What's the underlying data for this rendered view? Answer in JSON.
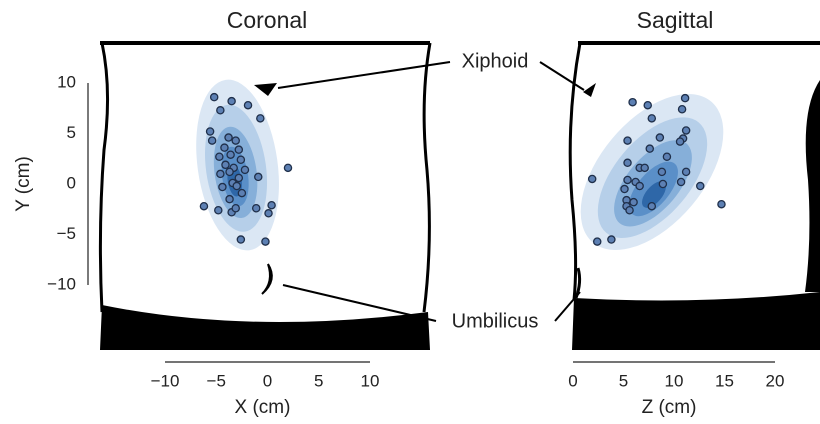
{
  "chart_data": [
    {
      "type": "scatter",
      "title": "Coronal",
      "x_label": "X (cm)",
      "y_label": "Y (cm)",
      "color": "#5d80b3",
      "xlim": [
        -10,
        10
      ],
      "xticks": [
        {
          "value": -10,
          "label": "−10"
        },
        {
          "value": -5,
          "label": "−5"
        },
        0,
        5,
        10
      ],
      "ylim": [
        -10,
        10
      ],
      "yticks": [
        {
          "value": -10,
          "label": "−10"
        },
        {
          "value": -5,
          "label": "−5"
        },
        0,
        5,
        10
      ],
      "x": [
        -5.2,
        -3.5,
        -1.9,
        -4.6,
        -0.7,
        -5.6,
        -5.4,
        -3.8,
        -3.1,
        -4.2,
        -2.8,
        -4.7,
        -3.6,
        -2.6,
        -4.1,
        -3.3,
        -2.2,
        -4.6,
        -3.7,
        -2.8,
        -3.4,
        -3.0,
        -4.4,
        -0.9,
        2.0,
        -2.5,
        -3.7,
        -6.2,
        -4.8,
        -3.5,
        -3.1,
        -1.1,
        0.4,
        0.1,
        -2.6,
        -0.2
      ],
      "y": [
        8.6,
        8.2,
        7.8,
        7.3,
        6.5,
        5.2,
        4.3,
        4.6,
        4.3,
        3.6,
        3.4,
        2.7,
        2.9,
        2.4,
        1.9,
        1.6,
        1.4,
        1.0,
        1.2,
        0.6,
        0.1,
        -0.2,
        -0.3,
        0.7,
        1.6,
        -0.9,
        -1.5,
        -2.2,
        -2.6,
        -2.8,
        -2.4,
        -2.4,
        -2.1,
        -2.9,
        -5.5,
        -5.7
      ]
    },
    {
      "type": "scatter",
      "title": "Sagittal",
      "x_label": "Z  (cm)",
      "color": "#5d80b3",
      "xlim": [
        0,
        20
      ],
      "xticks": [
        0,
        5,
        10,
        15,
        20
      ],
      "ylim": [
        -10,
        10
      ],
      "x": [
        5.9,
        7.4,
        11.1,
        10.8,
        7.8,
        5.4,
        11.2,
        10.9,
        8.6,
        7.6,
        10.6,
        9.3,
        5.4,
        6.6,
        5.4,
        7.1,
        8.8,
        1.9,
        6.2,
        5.1,
        8.9,
        11.2,
        12.6,
        10.7,
        5.3,
        5.3,
        5.6,
        6.0,
        7.8,
        14.7,
        3.8,
        2.4,
        6.6
      ],
      "y": [
        8.1,
        7.8,
        8.5,
        7.4,
        6.5,
        4.3,
        5.3,
        4.5,
        4.6,
        3.5,
        4.2,
        2.7,
        2.1,
        1.6,
        0.4,
        1.6,
        1.2,
        0.5,
        0.2,
        -0.5,
        0.0,
        1.2,
        -0.2,
        0.2,
        -1.6,
        -2.2,
        -2.6,
        -1.8,
        -2.2,
        -2.0,
        -5.5,
        -5.7,
        -0.2
      ]
    }
  ],
  "annotations": [
    "Xiphoid",
    "Umbilicus"
  ]
}
